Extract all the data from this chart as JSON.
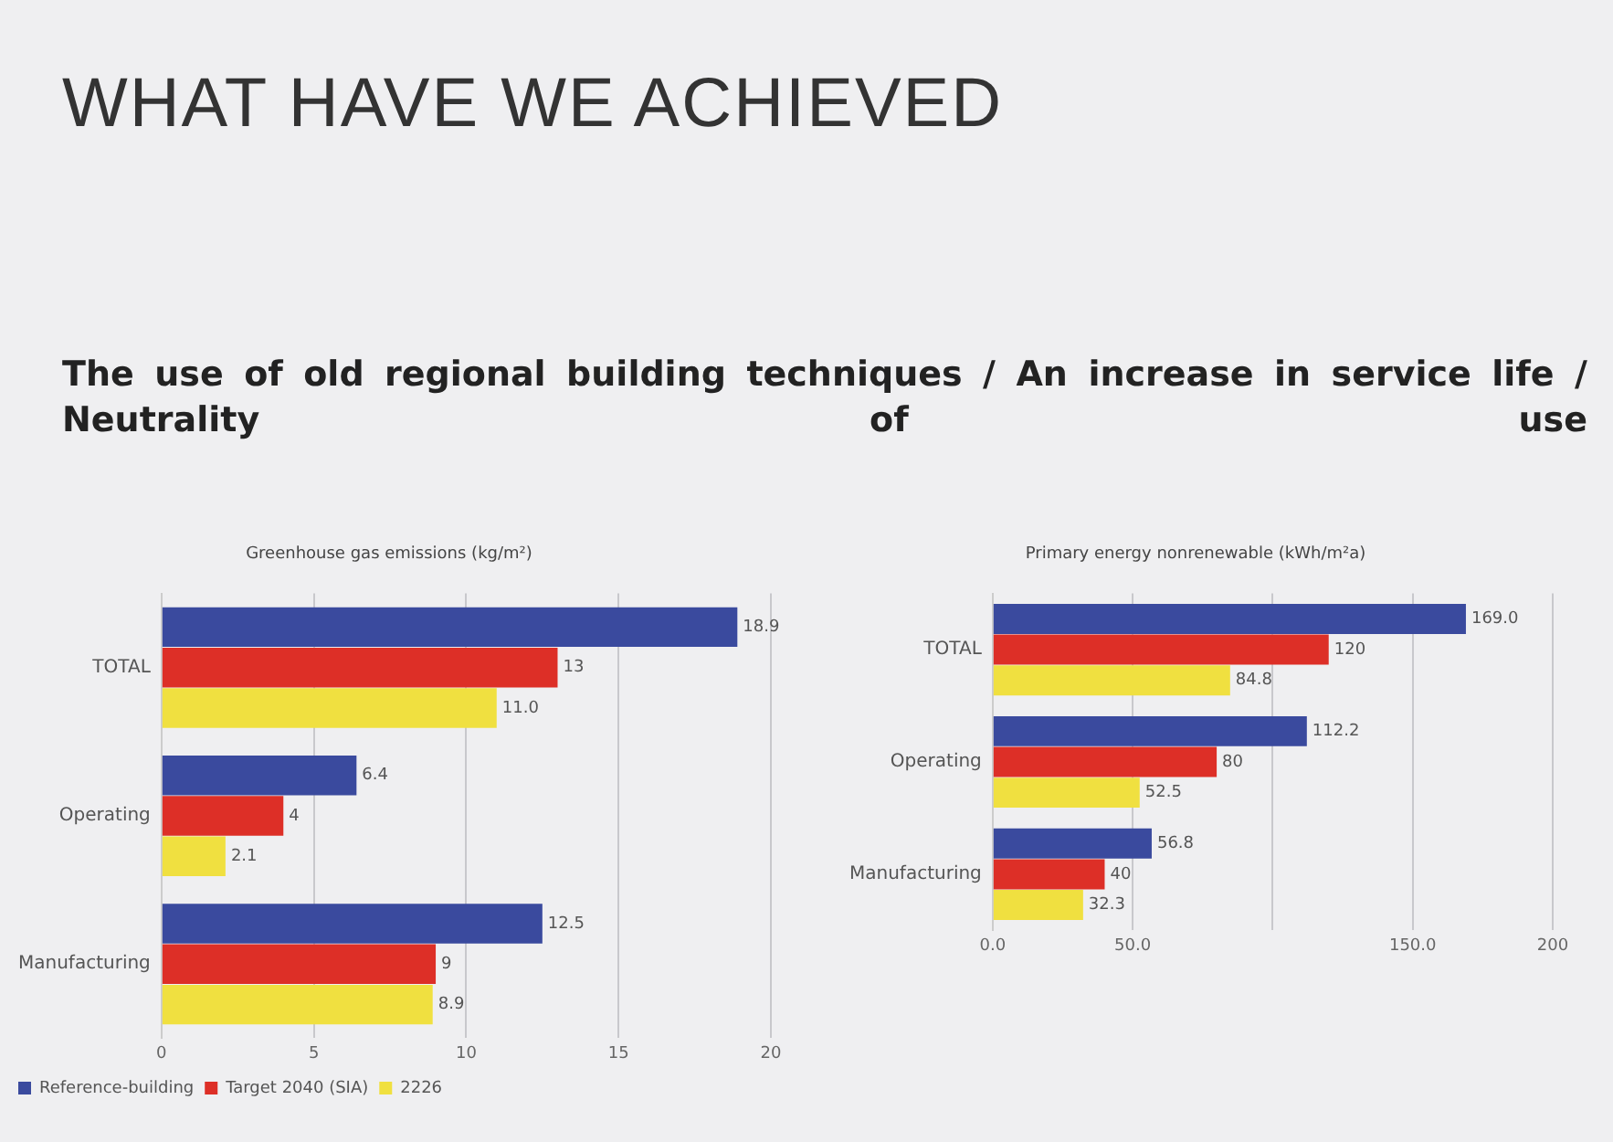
{
  "chart_data": [
    {
      "type": "other",
      "title": "WHAT HAVE WE ACHIEVED",
      "subtitle": "The use of old regional building techniques / An increase in service life / Neutrality of use"
    },
    {
      "type": "bar",
      "orientation": "horizontal",
      "title": "Greenhouse gas emissions (kg/m²)",
      "categories": [
        "TOTAL",
        "Operating",
        "Manufacturing"
      ],
      "series": [
        {
          "name": "Reference-building",
          "color": "#3a4a9e",
          "values": [
            18.9,
            6.4,
            12.5
          ],
          "value_labels": [
            "18.9",
            "6.4",
            "12.5"
          ]
        },
        {
          "name": "Target 2040 (SIA)",
          "color": "#dd2f27",
          "values": [
            13,
            4,
            9
          ],
          "value_labels": [
            "13",
            "4",
            "9"
          ]
        },
        {
          "name": "2226",
          "color": "#f0e040",
          "values": [
            11.0,
            2.1,
            8.9
          ],
          "value_labels": [
            "11.0",
            "2.1",
            "8.9"
          ]
        }
      ],
      "xlim": [
        0,
        20
      ],
      "xticks": [
        0,
        5,
        10,
        15,
        20
      ],
      "grid": "x",
      "legend": "bottom left"
    },
    {
      "type": "bar",
      "orientation": "horizontal",
      "title": "Primary energy nonrenewable (kWh/m²a)",
      "categories": [
        "TOTAL",
        "Operating",
        "Manufacturing"
      ],
      "series": [
        {
          "color": "#3a4a9e",
          "values": [
            169.0,
            112.2,
            56.8
          ],
          "value_labels": [
            "169.0",
            "112.2",
            "56.8"
          ]
        },
        {
          "color": "#dd2f27",
          "values": [
            120,
            80,
            40
          ],
          "value_labels": [
            "120",
            "80",
            "40"
          ]
        },
        {
          "color": "#f0e040",
          "values": [
            84.8,
            52.5,
            32.3
          ],
          "value_labels": [
            "84.8",
            "52.5",
            "32.3"
          ]
        }
      ],
      "xlim": [
        0,
        200
      ],
      "xticks": [
        {
          "value": 0,
          "label": "0.0"
        },
        {
          "value": 50,
          "label": "50.0"
        },
        {
          "value": 100,
          "label": null
        },
        {
          "value": 150,
          "label": "150.0"
        },
        {
          "value": 200,
          "label": "200"
        }
      ],
      "grid": "x",
      "legend": false
    }
  ]
}
